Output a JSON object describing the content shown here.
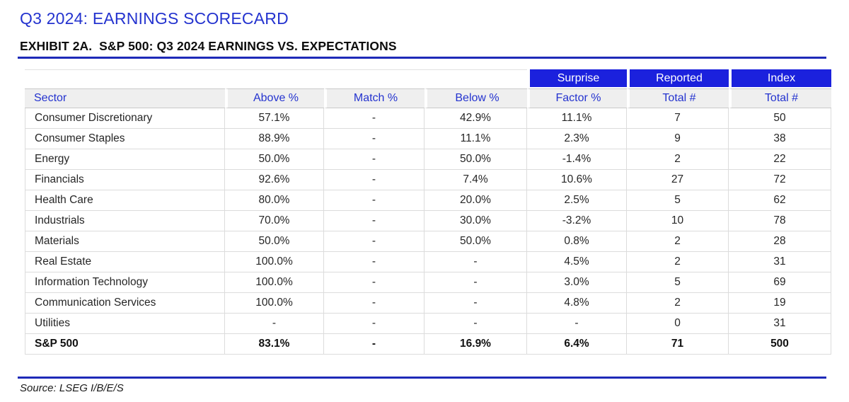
{
  "page_title": "Q3 2024: EARNINGS SCORECARD",
  "exhibit_title": "EXHIBIT 2A.  S&P 500: Q3 2024 EARNINGS VS. EXPECTATIONS",
  "source_note": "Source: LSEG I/B/E/S",
  "colors": {
    "header_fill_blue": "#1b21dd",
    "blue_text": "#2433cf",
    "rule_blue": "#1e2ab8",
    "subheader_bg": "#efefef",
    "grid_line": "#dcdcdc",
    "body_text": "#262626"
  },
  "chart_data": {
    "type": "table",
    "title": "S&P 500: Q3 2024 Earnings vs. Expectations",
    "group_headers": [
      {
        "label": "Surprise",
        "col": 4
      },
      {
        "label": "Reported",
        "col": 5
      },
      {
        "label": "Index",
        "col": 6
      }
    ],
    "columns": [
      "Sector",
      "Above %",
      "Match %",
      "Below %",
      "Factor %",
      "Total #",
      "Total #"
    ],
    "rows": [
      [
        "Consumer Discretionary",
        "57.1%",
        "-",
        "42.9%",
        "11.1%",
        "7",
        "50"
      ],
      [
        "Consumer Staples",
        "88.9%",
        "-",
        "11.1%",
        "2.3%",
        "9",
        "38"
      ],
      [
        "Energy",
        "50.0%",
        "-",
        "50.0%",
        "-1.4%",
        "2",
        "22"
      ],
      [
        "Financials",
        "92.6%",
        "-",
        "7.4%",
        "10.6%",
        "27",
        "72"
      ],
      [
        "Health Care",
        "80.0%",
        "-",
        "20.0%",
        "2.5%",
        "5",
        "62"
      ],
      [
        "Industrials",
        "70.0%",
        "-",
        "30.0%",
        "-3.2%",
        "10",
        "78"
      ],
      [
        "Materials",
        "50.0%",
        "-",
        "50.0%",
        "0.8%",
        "2",
        "28"
      ],
      [
        "Real Estate",
        "100.0%",
        "-",
        "-",
        "4.5%",
        "2",
        "31"
      ],
      [
        "Information Technology",
        "100.0%",
        "-",
        "-",
        "3.0%",
        "5",
        "69"
      ],
      [
        "Communication Services",
        "100.0%",
        "-",
        "-",
        "4.8%",
        "2",
        "19"
      ],
      [
        "Utilities",
        "-",
        "-",
        "-",
        "-",
        "0",
        "31"
      ]
    ],
    "total_row": [
      "S&P 500",
      "83.1%",
      "-",
      "16.9%",
      "6.4%",
      "71",
      "500"
    ]
  }
}
